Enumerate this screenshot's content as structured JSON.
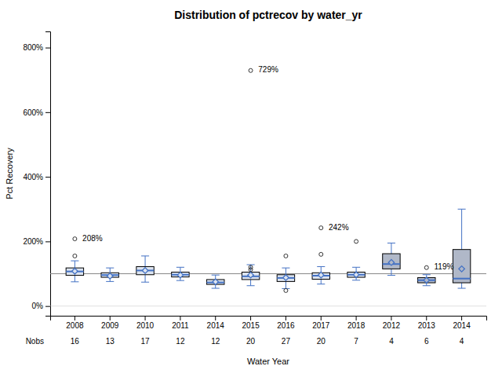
{
  "chart_data": {
    "type": "box",
    "title": "Distribution of pctrecov by water_yr",
    "xlabel": "Water Year",
    "ylabel": "Pct Recovery",
    "categories": [
      "2008",
      "2009",
      "2010",
      "2011",
      "2014",
      "2015",
      "2016",
      "2017",
      "2018",
      "2012",
      "2013",
      "2014"
    ],
    "nobs": {
      "label": "Nobs",
      "values": [
        16,
        13,
        17,
        12,
        12,
        20,
        27,
        20,
        7,
        4,
        6,
        4
      ]
    },
    "ylim": [
      -30,
      850
    ],
    "yticks": [
      {
        "value": 0,
        "label": "0%"
      },
      {
        "value": 200,
        "label": "200%"
      },
      {
        "value": 400,
        "label": "400%"
      },
      {
        "value": 600,
        "label": "600%"
      },
      {
        "value": 800,
        "label": "800%"
      }
    ],
    "grid": false,
    "color": "#4472c4",
    "colors": [
      "#dce4f0",
      "#dce4f0",
      "#dce4f0",
      "#dce4f0",
      "#dce4f0",
      "#dce4f0",
      "#dce4f0",
      "#dce4f0",
      "#dce4f0",
      "#b0b8c8",
      "#b0b8c8",
      "#b0b8c8"
    ],
    "reference_lines": [
      {
        "value": 100,
        "color": "#888888"
      },
      {
        "value": 0,
        "color": "#cccccc"
      }
    ],
    "boxes": [
      {
        "q1": 95,
        "median": 107,
        "q3": 118,
        "mean": 108,
        "whisker_low": 75,
        "whisker_high": 140,
        "outliers": [
          155,
          208
        ],
        "outlier_labels": [
          null,
          "208%"
        ]
      },
      {
        "q1": 89,
        "median": 96,
        "q3": 103,
        "mean": 93,
        "whisker_low": 76,
        "whisker_high": 118,
        "outliers": []
      },
      {
        "q1": 97,
        "median": 110,
        "q3": 122,
        "mean": 110,
        "whisker_low": 74,
        "whisker_high": 155,
        "outliers": []
      },
      {
        "q1": 90,
        "median": 97,
        "q3": 105,
        "mean": 96,
        "whisker_low": 79,
        "whisker_high": 120,
        "outliers": []
      },
      {
        "q1": 67,
        "median": 73,
        "q3": 82,
        "mean": 75,
        "whisker_low": 55,
        "whisker_high": 96,
        "outliers": []
      },
      {
        "q1": 82,
        "median": 92,
        "q3": 105,
        "mean": 96,
        "whisker_low": 63,
        "whisker_high": 128,
        "outliers": [
          113,
          120,
          729
        ],
        "outlier_labels": [
          null,
          null,
          "729%"
        ]
      },
      {
        "q1": 76,
        "median": 87,
        "q3": 97,
        "mean": 88,
        "whisker_low": 54,
        "whisker_high": 118,
        "outliers": [
          48,
          155
        ]
      },
      {
        "q1": 83,
        "median": 94,
        "q3": 103,
        "mean": 96,
        "whisker_low": 68,
        "whisker_high": 122,
        "outliers": [
          160,
          242
        ],
        "outlier_labels": [
          null,
          "242%"
        ]
      },
      {
        "q1": 89,
        "median": 97,
        "q3": 105,
        "mean": 97,
        "whisker_low": 80,
        "whisker_high": 120,
        "outliers": [
          200
        ]
      },
      {
        "q1": 115,
        "median": 130,
        "q3": 162,
        "mean": 135,
        "whisker_low": 95,
        "whisker_high": 195,
        "outliers": []
      },
      {
        "q1": 72,
        "median": 80,
        "q3": 88,
        "mean": 80,
        "whisker_low": 63,
        "whisker_high": 97,
        "outliers": [
          119
        ],
        "outlier_labels": [
          "119%"
        ]
      },
      {
        "q1": 72,
        "median": 85,
        "q3": 175,
        "mean": 115,
        "whisker_low": 55,
        "whisker_high": 300,
        "outliers": []
      }
    ]
  }
}
